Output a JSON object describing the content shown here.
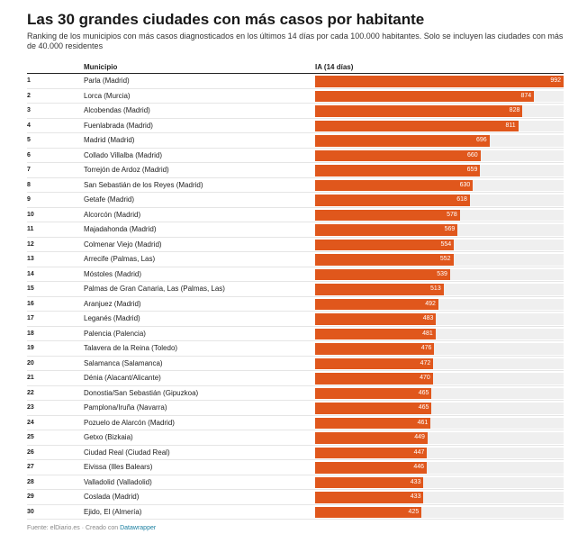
{
  "title": "Las 30 grandes ciudades con más casos por habitante",
  "subtitle": "Ranking de los municipios con más casos diagnosticados en los últimos 14 días por cada 100.000 habitantes. Solo se incluyen las ciudades con más de 40.000 residentes",
  "columns": {
    "municipio": "Municipio",
    "ia": "IA (14 días)"
  },
  "footer": {
    "source": "Fuente: elDiario.es · Creado con ",
    "tool": "Datawrapper"
  },
  "colors": {
    "bar": "#e0571c",
    "track": "#efefef"
  },
  "chart_data": {
    "type": "table",
    "ylim": [
      0,
      992
    ],
    "rows": [
      {
        "rank": "1",
        "municipio": "Parla (Madrid)",
        "value": 992
      },
      {
        "rank": "2",
        "municipio": "Lorca (Murcia)",
        "value": 874
      },
      {
        "rank": "3",
        "municipio": "Alcobendas (Madrid)",
        "value": 828
      },
      {
        "rank": "4",
        "municipio": "Fuenlabrada (Madrid)",
        "value": 811
      },
      {
        "rank": "5",
        "municipio": "Madrid (Madrid)",
        "value": 696
      },
      {
        "rank": "6",
        "municipio": "Collado Villalba (Madrid)",
        "value": 660
      },
      {
        "rank": "7",
        "municipio": "Torrejón de Ardoz (Madrid)",
        "value": 659
      },
      {
        "rank": "8",
        "municipio": "San Sebastián de los Reyes (Madrid)",
        "value": 630
      },
      {
        "rank": "9",
        "municipio": "Getafe (Madrid)",
        "value": 618
      },
      {
        "rank": "10",
        "municipio": "Alcorcón (Madrid)",
        "value": 578
      },
      {
        "rank": "11",
        "municipio": "Majadahonda (Madrid)",
        "value": 569
      },
      {
        "rank": "12",
        "municipio": "Colmenar Viejo (Madrid)",
        "value": 554
      },
      {
        "rank": "13",
        "municipio": "Arrecife (Palmas, Las)",
        "value": 552
      },
      {
        "rank": "14",
        "municipio": "Móstoles (Madrid)",
        "value": 539
      },
      {
        "rank": "15",
        "municipio": "Palmas de Gran Canaria, Las (Palmas, Las)",
        "value": 513
      },
      {
        "rank": "16",
        "municipio": "Aranjuez (Madrid)",
        "value": 492
      },
      {
        "rank": "17",
        "municipio": "Leganés (Madrid)",
        "value": 483
      },
      {
        "rank": "18",
        "municipio": "Palencia (Palencia)",
        "value": 481
      },
      {
        "rank": "19",
        "municipio": "Talavera de la Reina (Toledo)",
        "value": 476
      },
      {
        "rank": "20",
        "municipio": "Salamanca (Salamanca)",
        "value": 472
      },
      {
        "rank": "21",
        "municipio": "Dénia (Alacant/Alicante)",
        "value": 470
      },
      {
        "rank": "22",
        "municipio": "Donostia/San Sebastián (Gipuzkoa)",
        "value": 465
      },
      {
        "rank": "23",
        "municipio": "Pamplona/Iruña (Navarra)",
        "value": 465
      },
      {
        "rank": "24",
        "municipio": "Pozuelo de Alarcón (Madrid)",
        "value": 461
      },
      {
        "rank": "25",
        "municipio": "Getxo (Bizkaia)",
        "value": 449
      },
      {
        "rank": "26",
        "municipio": "Ciudad Real (Ciudad Real)",
        "value": 447
      },
      {
        "rank": "27",
        "municipio": "Eivissa (Illes Balears)",
        "value": 446
      },
      {
        "rank": "28",
        "municipio": "Valladolid (Valladolid)",
        "value": 433
      },
      {
        "rank": "29",
        "municipio": "Coslada (Madrid)",
        "value": 433
      },
      {
        "rank": "30",
        "municipio": "Ejido, El (Almería)",
        "value": 425
      }
    ]
  }
}
